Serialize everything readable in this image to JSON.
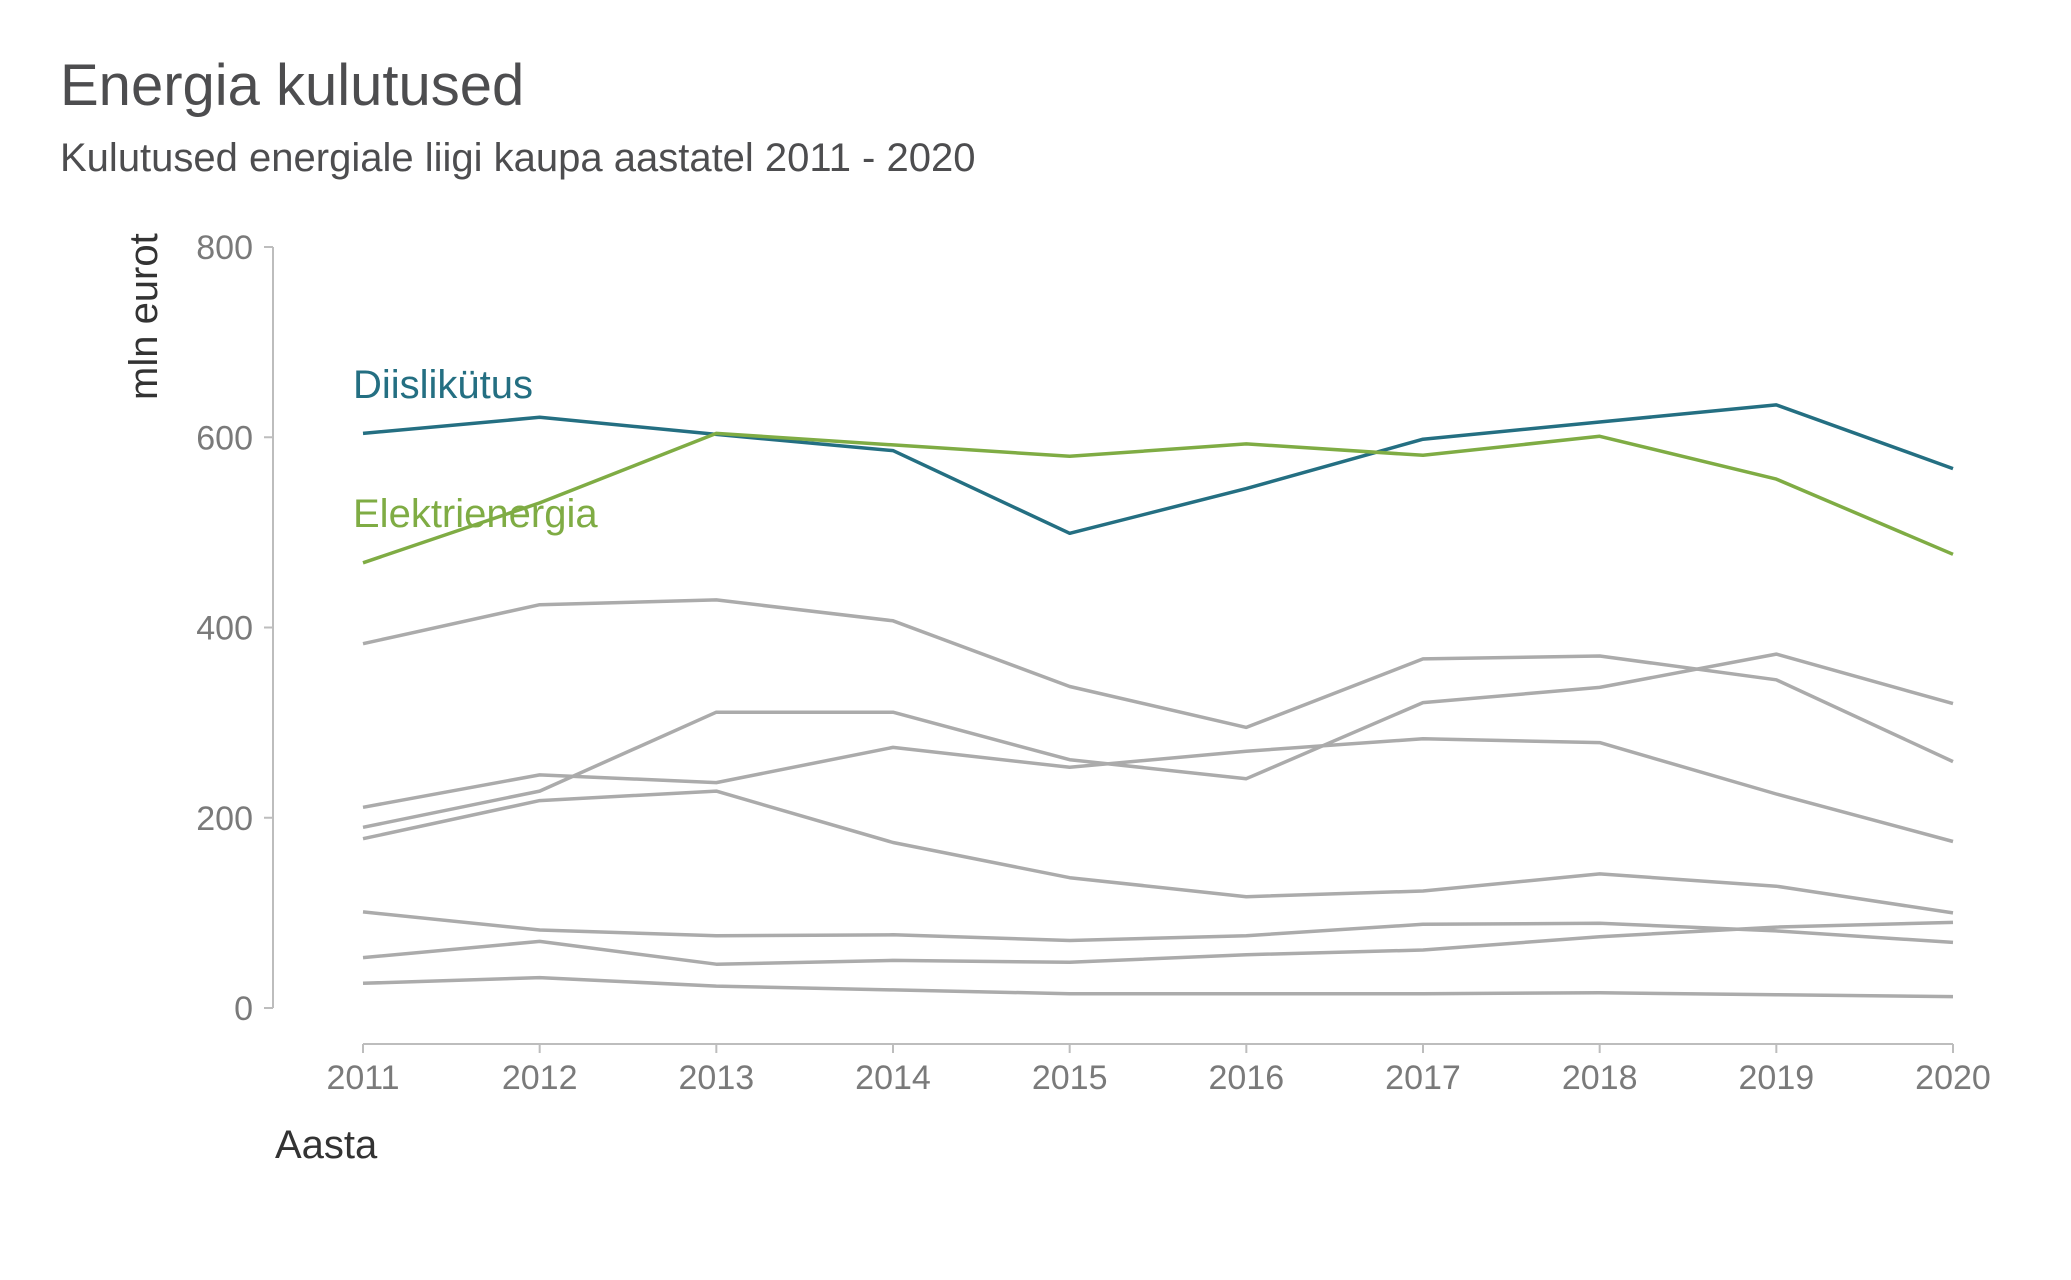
{
  "chart_data": {
    "type": "line",
    "title": "Energia kulutused",
    "subtitle": "Kulutused energiale liigi kaupa aastatel 2011 - 2020",
    "xlabel": "Aasta",
    "ylabel": "mln eurot",
    "x": [
      2011,
      2012,
      2013,
      2014,
      2015,
      2016,
      2017,
      2018,
      2019,
      2020
    ],
    "ylim": [
      0,
      800
    ],
    "yticks": [
      0,
      200,
      400,
      600,
      800
    ],
    "grid": false,
    "highlight_colors": {
      "Diislikütus": "#246f82",
      "Elektrienergia": "#7fac44"
    },
    "other_color": "#ababab",
    "series": [
      {
        "name": "Diislikütus",
        "highlight": true,
        "values": [
          604,
          621,
          603,
          586,
          499,
          546,
          598,
          616,
          634,
          567
        ]
      },
      {
        "name": "Elektrienergia",
        "highlight": true,
        "values": [
          468,
          531,
          604,
          592,
          580,
          593,
          581,
          601,
          556,
          477
        ]
      },
      {
        "highlight": false,
        "values": [
          383,
          424,
          429,
          407,
          338,
          295,
          367,
          370,
          345,
          259
        ]
      },
      {
        "highlight": false,
        "values": [
          190,
          228,
          311,
          311,
          261,
          241,
          321,
          337,
          372,
          320
        ]
      },
      {
        "highlight": false,
        "values": [
          211,
          245,
          237,
          274,
          253,
          270,
          283,
          279,
          225,
          175
        ]
      },
      {
        "highlight": false,
        "values": [
          178,
          218,
          228,
          174,
          137,
          117,
          123,
          141,
          128,
          100
        ]
      },
      {
        "highlight": false,
        "values": [
          101,
          82,
          76,
          77,
          71,
          76,
          88,
          89,
          81,
          69
        ]
      },
      {
        "highlight": false,
        "values": [
          53,
          70,
          46,
          50,
          48,
          56,
          61,
          75,
          85,
          90
        ]
      },
      {
        "highlight": false,
        "values": [
          26,
          32,
          23,
          19,
          15,
          15,
          15,
          16,
          14,
          12
        ]
      }
    ]
  }
}
